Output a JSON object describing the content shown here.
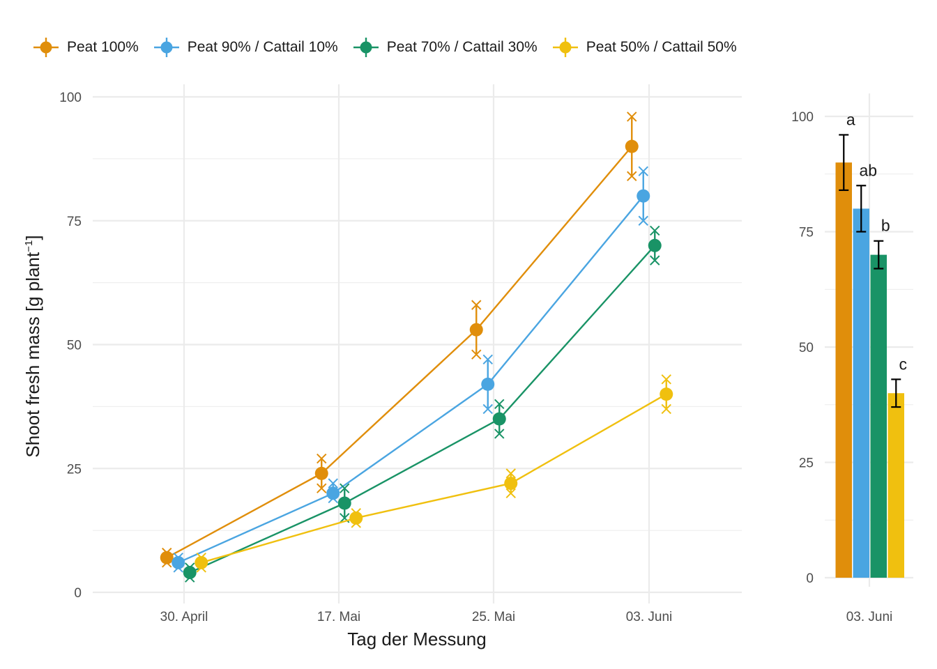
{
  "chart_data": [
    {
      "type": "line",
      "xlabel": "Tag der Messung",
      "ylabel": "Shoot fresh mass [g plant",
      "ylabel_sup": "−1",
      "ylabel_close": "]",
      "categories": [
        "30. April",
        "17. Mai",
        "25. Mai",
        "03. Juni"
      ],
      "ylim": [
        0,
        100
      ],
      "yticks": [
        0,
        25,
        50,
        75,
        100
      ],
      "ytick_labels": [
        "0",
        "25",
        "50",
        "75",
        "100"
      ],
      "grid": true,
      "legend_position": "top",
      "series": [
        {
          "name": "Peat 100%",
          "color": "#E08E0B",
          "means": [
            7,
            24,
            53,
            90
          ],
          "replicates": [
            [
              6,
              8
            ],
            [
              21,
              27
            ],
            [
              48,
              58
            ],
            [
              84,
              96
            ]
          ]
        },
        {
          "name": "Peat 90% / Cattail 10%",
          "color": "#4AA5E1",
          "means": [
            6,
            20,
            42,
            80
          ],
          "replicates": [
            [
              5,
              7
            ],
            [
              19,
              22
            ],
            [
              37,
              47
            ],
            [
              75,
              85
            ]
          ]
        },
        {
          "name": "Peat 70% / Cattail 30%",
          "color": "#199366",
          "means": [
            4,
            18,
            35,
            70
          ],
          "replicates": [
            [
              3,
              5
            ],
            [
              15,
              21
            ],
            [
              32,
              38
            ],
            [
              67,
              73
            ]
          ]
        },
        {
          "name": "Peat 50% / Cattail 50%",
          "color": "#F0C00F",
          "means": [
            6,
            15,
            22,
            40
          ],
          "replicates": [
            [
              5,
              7
            ],
            [
              14,
              16
            ],
            [
              20,
              24
            ],
            [
              37,
              43
            ]
          ]
        }
      ]
    },
    {
      "type": "bar",
      "categories": [
        "03. Juni"
      ],
      "ylim": [
        0,
        100
      ],
      "yticks": [
        0,
        25,
        50,
        75,
        100
      ],
      "ytick_labels": [
        "0",
        "25",
        "50",
        "75",
        "100"
      ],
      "series": [
        {
          "name": "Peat 100%",
          "color": "#E08E0B",
          "value": 90,
          "error": [
            84,
            96
          ],
          "label": "a"
        },
        {
          "name": "Peat 90% / Cattail 10%",
          "color": "#4AA5E1",
          "value": 80,
          "error": [
            75,
            85
          ],
          "label": "ab"
        },
        {
          "name": "Peat 70% / Cattail 30%",
          "color": "#199366",
          "value": 70,
          "error": [
            67,
            73
          ],
          "label": "b"
        },
        {
          "name": "Peat 50% / Cattail 50%",
          "color": "#F0C00F",
          "value": 40,
          "error": [
            37,
            43
          ],
          "label": "c"
        }
      ]
    }
  ]
}
